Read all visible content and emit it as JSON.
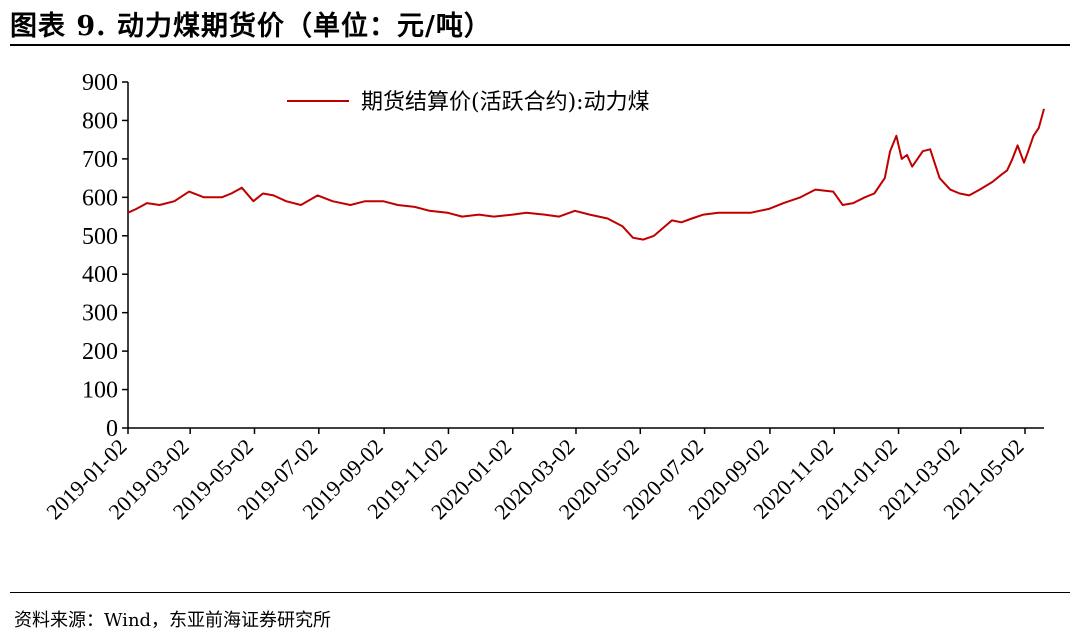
{
  "figure": {
    "title": "图表 9.   动力煤期货价（单位：元/吨）",
    "source": "资料来源：Wind，东亚前海证券研究所"
  },
  "colors": {
    "series": "#c00000",
    "axis": "#000000"
  },
  "chart_data": {
    "type": "line",
    "title": "",
    "xlabel": "",
    "ylabel": "",
    "ylim": [
      0,
      900
    ],
    "yticks": [
      0,
      100,
      200,
      300,
      400,
      500,
      600,
      700,
      800,
      900
    ],
    "xlim": [
      "2019-01-02",
      "2021-05-20"
    ],
    "xticks": [
      "2019-01-02",
      "2019-03-02",
      "2019-05-02",
      "2019-07-02",
      "2019-09-02",
      "2019-11-02",
      "2020-01-02",
      "2020-03-02",
      "2020-05-02",
      "2020-07-02",
      "2020-09-02",
      "2020-11-02",
      "2021-01-02",
      "2021-03-02",
      "2021-05-02"
    ],
    "legend_position": "top-center",
    "grid": false,
    "series": [
      {
        "name": "期货结算价(活跃合约):动力煤",
        "x": [
          "2019-01-02",
          "2019-01-10",
          "2019-01-20",
          "2019-02-01",
          "2019-02-15",
          "2019-03-01",
          "2019-03-15",
          "2019-04-01",
          "2019-04-10",
          "2019-04-20",
          "2019-05-01",
          "2019-05-10",
          "2019-05-20",
          "2019-06-01",
          "2019-06-15",
          "2019-07-01",
          "2019-07-15",
          "2019-08-01",
          "2019-08-15",
          "2019-09-01",
          "2019-09-15",
          "2019-10-01",
          "2019-10-15",
          "2019-11-01",
          "2019-11-15",
          "2019-12-01",
          "2019-12-15",
          "2020-01-02",
          "2020-01-15",
          "2020-02-01",
          "2020-02-15",
          "2020-03-01",
          "2020-03-15",
          "2020-04-01",
          "2020-04-15",
          "2020-04-25",
          "2020-05-05",
          "2020-05-15",
          "2020-06-01",
          "2020-06-10",
          "2020-06-20",
          "2020-07-01",
          "2020-07-15",
          "2020-08-01",
          "2020-08-15",
          "2020-09-01",
          "2020-09-15",
          "2020-10-01",
          "2020-10-15",
          "2020-11-01",
          "2020-11-10",
          "2020-11-20",
          "2020-12-01",
          "2020-12-10",
          "2020-12-20",
          "2020-12-25",
          "2020-12-31",
          "2021-01-05",
          "2021-01-10",
          "2021-01-15",
          "2021-01-20",
          "2021-01-25",
          "2021-02-01",
          "2021-02-10",
          "2021-02-20",
          "2021-03-01",
          "2021-03-10",
          "2021-03-20",
          "2021-04-01",
          "2021-04-10",
          "2021-04-15",
          "2021-04-20",
          "2021-04-25",
          "2021-05-01",
          "2021-05-05",
          "2021-05-10",
          "2021-05-15",
          "2021-05-20"
        ],
        "y": [
          560,
          570,
          585,
          580,
          590,
          615,
          600,
          600,
          610,
          625,
          590,
          610,
          605,
          590,
          580,
          605,
          590,
          580,
          590,
          590,
          580,
          575,
          565,
          560,
          550,
          555,
          550,
          555,
          560,
          555,
          550,
          565,
          555,
          545,
          525,
          495,
          490,
          500,
          540,
          535,
          545,
          555,
          560,
          560,
          560,
          570,
          585,
          600,
          620,
          615,
          580,
          585,
          600,
          610,
          650,
          720,
          760,
          700,
          710,
          680,
          700,
          720,
          725,
          650,
          620,
          610,
          605,
          620,
          640,
          660,
          670,
          700,
          735,
          690,
          720,
          760,
          780,
          830
        ]
      }
    ]
  }
}
